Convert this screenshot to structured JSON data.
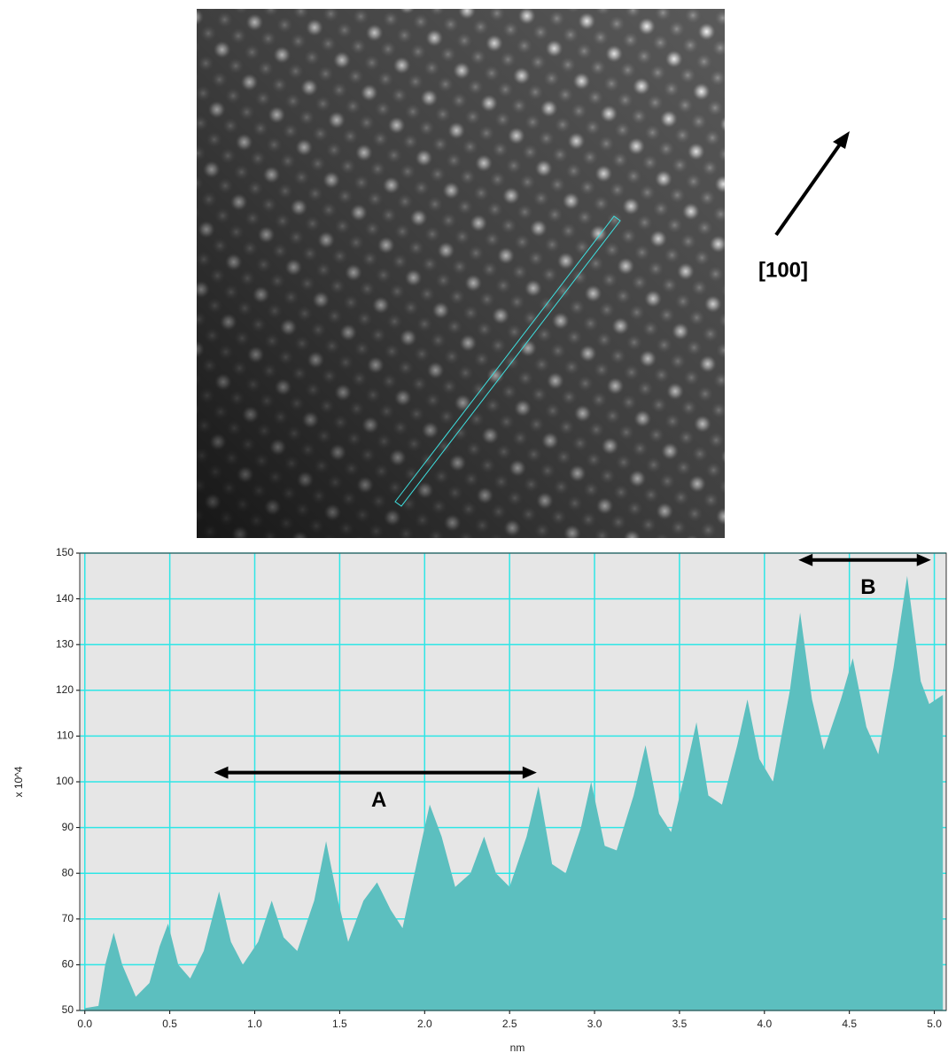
{
  "image": {
    "direction_label": "[100]"
  },
  "chart_data": {
    "type": "area",
    "x_label": "nm",
    "y_label": "x 10^4",
    "x": [
      0.0,
      0.08,
      0.12,
      0.17,
      0.22,
      0.3,
      0.38,
      0.44,
      0.49,
      0.55,
      0.62,
      0.7,
      0.79,
      0.86,
      0.93,
      1.02,
      1.1,
      1.17,
      1.25,
      1.35,
      1.42,
      1.49,
      1.55,
      1.64,
      1.72,
      1.8,
      1.87,
      1.97,
      2.03,
      2.1,
      2.18,
      2.27,
      2.35,
      2.42,
      2.5,
      2.6,
      2.67,
      2.75,
      2.83,
      2.92,
      2.98,
      3.06,
      3.13,
      3.23,
      3.3,
      3.38,
      3.45,
      3.54,
      3.6,
      3.67,
      3.75,
      3.84,
      3.9,
      3.97,
      4.05,
      4.15,
      4.21,
      4.28,
      4.35,
      4.45,
      4.52,
      4.6,
      4.67,
      4.76,
      4.84,
      4.92,
      4.97,
      5.05
    ],
    "values": [
      50.5,
      51,
      60,
      67,
      60,
      53,
      56,
      64,
      69,
      60,
      57,
      63,
      76,
      65,
      60,
      65,
      74,
      66,
      63,
      74,
      87,
      74,
      65,
      74,
      78,
      72,
      68,
      85,
      95,
      88,
      77,
      80,
      88,
      80,
      77,
      88,
      99,
      82,
      80,
      90,
      100,
      86,
      85,
      97,
      108,
      93,
      89,
      103,
      113,
      97,
      95,
      108,
      118,
      105,
      100,
      120,
      137,
      118,
      107,
      118,
      127,
      112,
      106,
      125,
      145,
      122,
      117,
      119
    ],
    "color": "#5cbfbf",
    "xlim": [
      -0.03,
      5.07
    ],
    "ylim": [
      50,
      150
    ],
    "xticks": [
      {
        "value": 0,
        "label": "0.0"
      },
      0.5,
      {
        "value": 1,
        "label": "1.0"
      },
      1.5,
      {
        "value": 2,
        "label": "2.0"
      },
      2.5,
      {
        "value": 3,
        "label": "3.0"
      },
      3.5,
      {
        "value": 4,
        "label": "4.0"
      },
      4.5,
      {
        "value": 5,
        "label": "5.0"
      }
    ],
    "yticks": [
      50,
      60,
      70,
      80,
      90,
      100,
      110,
      120,
      130,
      140,
      150
    ],
    "grid": true,
    "grid_color": "#2ee6e6",
    "annotations": [
      {
        "text": "A",
        "x": [
          0.76,
          2.66
        ],
        "y": 102
      },
      {
        "text": "B",
        "x": [
          4.2,
          4.98
        ],
        "y": 148.5
      }
    ]
  }
}
